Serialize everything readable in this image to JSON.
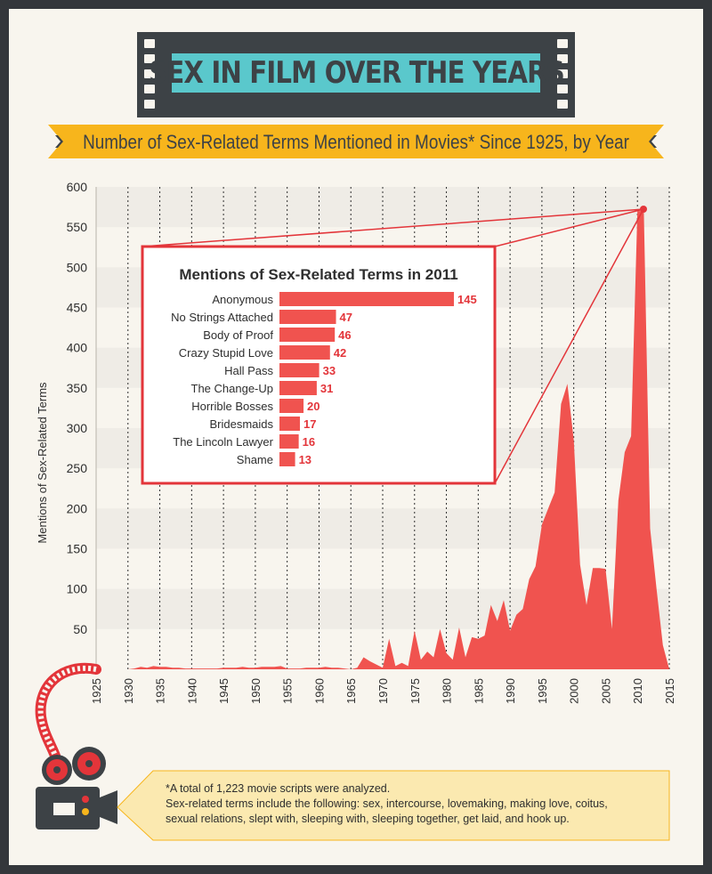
{
  "title": "SEX IN FILM OVER THE YEARS",
  "subtitle": "Number of Sex-Related Terms Mentioned in Movies* Since 1925, by Year",
  "colors": {
    "background": "#f8f5ee",
    "frame": "#34373b",
    "accent": "#f0534f",
    "title_box": "#5ac8cc",
    "banner": "#f7b51c",
    "footnote_bg": "#fbe9b0"
  },
  "chart_data": [
    {
      "type": "area",
      "ylabel": "Mentions of Sex-Related Terms",
      "xlabel": "",
      "xlim": [
        1925,
        2015
      ],
      "ylim": [
        0,
        600
      ],
      "x_ticks": [
        1925,
        1930,
        1935,
        1940,
        1945,
        1950,
        1955,
        1960,
        1965,
        1970,
        1975,
        1980,
        1985,
        1990,
        1995,
        2000,
        2005,
        2010,
        2015
      ],
      "y_ticks": [
        0,
        50,
        100,
        150,
        200,
        250,
        300,
        350,
        400,
        450,
        500,
        550,
        600
      ],
      "grid": "alternating horizontal bands, dotted vertical lines every 5 years",
      "series": [
        {
          "x": [
            1925,
            1926,
            1927,
            1928,
            1929,
            1930,
            1931,
            1932,
            1933,
            1934,
            1935,
            1936,
            1937,
            1938,
            1939,
            1940,
            1941,
            1942,
            1943,
            1944,
            1945,
            1946,
            1947,
            1948,
            1949,
            1950,
            1951,
            1952,
            1953,
            1954,
            1955,
            1956,
            1957,
            1958,
            1959,
            1960,
            1961,
            1962,
            1963,
            1964,
            1965,
            1966,
            1967,
            1968,
            1969,
            1970,
            1971,
            1972,
            1973,
            1974,
            1975,
            1976,
            1977,
            1978,
            1979,
            1980,
            1981,
            1982,
            1983,
            1984,
            1985,
            1986,
            1987,
            1988,
            1989,
            1990,
            1991,
            1992,
            1993,
            1994,
            1995,
            1996,
            1997,
            1998,
            1999,
            2000,
            2001,
            2002,
            2003,
            2004,
            2005,
            2006,
            2007,
            2008,
            2009,
            2010,
            2011,
            2012,
            2013,
            2014,
            2015
          ],
          "y": [
            0,
            0,
            0,
            0,
            0,
            0,
            1,
            3,
            2,
            4,
            3,
            3,
            2,
            2,
            1,
            1,
            1,
            1,
            1,
            1,
            2,
            2,
            2,
            3,
            2,
            2,
            3,
            3,
            3,
            4,
            1,
            1,
            1,
            2,
            2,
            2,
            3,
            2,
            2,
            1,
            0,
            2,
            15,
            10,
            6,
            2,
            38,
            4,
            8,
            4,
            48,
            12,
            22,
            15,
            50,
            20,
            12,
            52,
            15,
            40,
            38,
            42,
            80,
            60,
            86,
            48,
            68,
            75,
            112,
            128,
            180,
            200,
            220,
            330,
            355,
            285,
            130,
            80,
            126,
            126,
            125,
            50,
            210,
            270,
            290,
            570,
            570,
            175,
            100,
            30,
            0
          ]
        }
      ]
    },
    {
      "type": "bar",
      "title": "Mentions of Sex-Related Terms in 2011",
      "categories": [
        "Anonymous",
        "No Strings Attached",
        "Body of Proof",
        "Crazy Stupid Love",
        "Hall Pass",
        "The Change-Up",
        "Horrible Bosses",
        "Bridesmaids",
        "The Lincoln Lawyer",
        "Shame"
      ],
      "values": [
        145,
        47,
        46,
        42,
        33,
        31,
        20,
        17,
        16,
        13
      ]
    }
  ],
  "footnote": {
    "line1": "*A total of 1,223 movie scripts were analyzed.",
    "line2": "Sex-related terms include the following: sex, intercourse, lovemaking, making love, coitus,",
    "line3": "sexual relations, slept with, sleeping with, sleeping together, get laid, and hook up."
  }
}
